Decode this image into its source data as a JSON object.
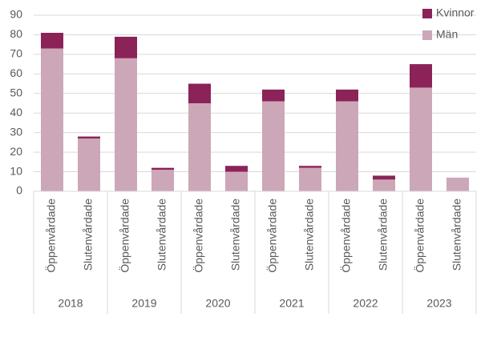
{
  "chart_data": {
    "type": "stacked-bar",
    "categories": [
      "Öppenvårdade",
      "Slutenvårdade",
      "Öppenvårdade",
      "Slutenvårdade",
      "Öppenvårdade",
      "Slutenvårdade",
      "Öppenvårdade",
      "Slutenvårdade",
      "Öppenvårdade",
      "Slutenvårdade",
      "Öppenvårdade",
      "Slutenvårdade"
    ],
    "groups": [
      "2018",
      "2019",
      "2020",
      "2021",
      "2022",
      "2023"
    ],
    "series": [
      {
        "name": "Män",
        "color": "#cca7b8",
        "values": [
          73,
          27,
          68,
          11,
          45,
          10,
          46,
          12,
          46,
          6,
          53,
          7
        ]
      },
      {
        "name": "Kvinnor",
        "color": "#8b2358",
        "values": [
          8,
          1,
          11,
          1,
          10,
          3,
          6,
          1,
          6,
          2,
          12,
          0
        ]
      }
    ],
    "ylim": [
      0,
      90
    ],
    "yticks": [
      0,
      10,
      20,
      30,
      40,
      50,
      60,
      70,
      80,
      90
    ],
    "grid": true,
    "legend": "top-right"
  }
}
